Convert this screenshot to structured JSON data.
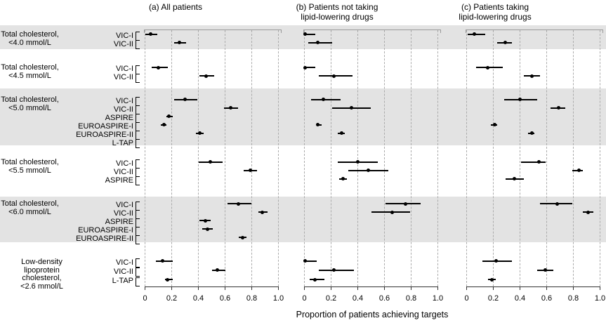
{
  "figure": {
    "background": "#ffffff",
    "colors": {
      "shaded_band": "#e3e3e3",
      "gridline": "#ababab",
      "top_frame": "#999999",
      "axis": "#333333",
      "data": "#000000",
      "text": "#000000"
    }
  },
  "chart_data": {
    "type": "scatter",
    "variant": "forest-plot-dots-with-ci",
    "x_axis": {
      "title": "Proportion of patients achieving targets",
      "range": [
        0,
        1
      ],
      "tick_values": [
        0,
        0.2,
        0.4,
        0.6,
        0.8,
        1.0
      ],
      "tick_labels": [
        "0",
        "0.2",
        "0.4",
        "0.6",
        "0.8",
        "1.0"
      ],
      "grid": "dashed-vertical"
    },
    "panels": [
      {
        "id": "a",
        "title_lines": [
          "(a) All patients"
        ]
      },
      {
        "id": "b",
        "title_lines": [
          "(b) Patients not taking",
          "lipid-lowering drugs"
        ]
      },
      {
        "id": "c",
        "title_lines": [
          "(c) Patients taking",
          "lipid-lowering drugs"
        ]
      }
    ],
    "groups": [
      {
        "target": "Total cholesterol, <4.0 mmol/L",
        "label_lines": [
          "Total cholesterol,",
          "<4.0 mmol/L"
        ],
        "shaded": true,
        "studies": [
          {
            "name": "VIC-I",
            "a": {
              "p": 0.04,
              "lo": 0.0,
              "hi": 0.09
            },
            "b": {
              "p": 0.005,
              "lo": 0.0,
              "hi": 0.08
            },
            "c": {
              "p": 0.06,
              "lo": 0.01,
              "hi": 0.14
            }
          },
          {
            "name": "VIC-II",
            "a": {
              "p": 0.26,
              "lo": 0.22,
              "hi": 0.31
            },
            "b": {
              "p": 0.1,
              "lo": 0.03,
              "hi": 0.21
            },
            "c": {
              "p": 0.29,
              "lo": 0.23,
              "hi": 0.34
            }
          }
        ]
      },
      {
        "target": "Total cholesterol, <4.5 mmol/L",
        "label_lines": [
          "Total cholesterol,",
          "<4.5 mmol/L"
        ],
        "shaded": false,
        "studies": [
          {
            "name": "VIC-I",
            "a": {
              "p": 0.1,
              "lo": 0.05,
              "hi": 0.17
            },
            "b": {
              "p": 0.005,
              "lo": 0.0,
              "hi": 0.08
            },
            "c": {
              "p": 0.16,
              "lo": 0.07,
              "hi": 0.27
            }
          },
          {
            "name": "VIC-II",
            "a": {
              "p": 0.46,
              "lo": 0.41,
              "hi": 0.52
            },
            "b": {
              "p": 0.22,
              "lo": 0.11,
              "hi": 0.36
            },
            "c": {
              "p": 0.49,
              "lo": 0.43,
              "hi": 0.55
            }
          }
        ]
      },
      {
        "target": "Total cholesterol, <5.0 mmol/L",
        "label_lines": [
          "Total cholesterol,",
          "<5.0 mmol/L"
        ],
        "shaded": true,
        "studies": [
          {
            "name": "VIC-I",
            "a": {
              "p": 0.3,
              "lo": 0.22,
              "hi": 0.39
            },
            "b": {
              "p": 0.14,
              "lo": 0.05,
              "hi": 0.27
            },
            "c": {
              "p": 0.4,
              "lo": 0.28,
              "hi": 0.53
            }
          },
          {
            "name": "VIC-II",
            "a": {
              "p": 0.64,
              "lo": 0.59,
              "hi": 0.7
            },
            "b": {
              "p": 0.35,
              "lo": 0.21,
              "hi": 0.5
            },
            "c": {
              "p": 0.69,
              "lo": 0.63,
              "hi": 0.74
            }
          },
          {
            "name": "ASPIRE",
            "a": {
              "p": 0.18,
              "lo": 0.16,
              "hi": 0.21
            },
            "b": null,
            "c": null
          },
          {
            "name": "EUROASPIRE-I",
            "a": {
              "p": 0.14,
              "lo": 0.12,
              "hi": 0.16
            },
            "b": {
              "p": 0.1,
              "lo": 0.09,
              "hi": 0.13
            },
            "c": {
              "p": 0.21,
              "lo": 0.18,
              "hi": 0.23
            }
          },
          {
            "name": "EUROASPIRE-II",
            "a": {
              "p": 0.41,
              "lo": 0.38,
              "hi": 0.44
            },
            "b": {
              "p": 0.28,
              "lo": 0.25,
              "hi": 0.3
            },
            "c": {
              "p": 0.49,
              "lo": 0.46,
              "hi": 0.51
            }
          },
          {
            "name": "L-TAP",
            "a": null,
            "b": null,
            "c": null
          }
        ]
      },
      {
        "target": "Total cholesterol, <5.5 mmol/L",
        "label_lines": [
          "Total cholesterol,",
          "<5.5 mmol/L"
        ],
        "shaded": false,
        "studies": [
          {
            "name": "VIC-I",
            "a": {
              "p": 0.49,
              "lo": 0.4,
              "hi": 0.58
            },
            "b": {
              "p": 0.4,
              "lo": 0.25,
              "hi": 0.55
            },
            "c": {
              "p": 0.54,
              "lo": 0.41,
              "hi": 0.59
            }
          },
          {
            "name": "VIC-II",
            "a": {
              "p": 0.79,
              "lo": 0.74,
              "hi": 0.84
            },
            "b": {
              "p": 0.48,
              "lo": 0.33,
              "hi": 0.63
            },
            "c": {
              "p": 0.84,
              "lo": 0.79,
              "hi": 0.87
            }
          },
          {
            "name": "ASPIRE",
            "a": null,
            "b": {
              "p": 0.29,
              "lo": 0.26,
              "hi": 0.32
            },
            "c": {
              "p": 0.36,
              "lo": 0.29,
              "hi": 0.43
            }
          }
        ]
      },
      {
        "target": "Total cholesterol, <6.0 mmol/L",
        "label_lines": [
          "Total cholesterol,",
          "<6.0 mmol/L"
        ],
        "shaded": true,
        "studies": [
          {
            "name": "VIC-I",
            "a": {
              "p": 0.7,
              "lo": 0.62,
              "hi": 0.8
            },
            "b": {
              "p": 0.76,
              "lo": 0.61,
              "hi": 0.87
            },
            "c": {
              "p": 0.68,
              "lo": 0.55,
              "hi": 0.79
            }
          },
          {
            "name": "VIC-II",
            "a": {
              "p": 0.88,
              "lo": 0.85,
              "hi": 0.92
            },
            "b": {
              "p": 0.66,
              "lo": 0.5,
              "hi": 0.79
            },
            "c": {
              "p": 0.91,
              "lo": 0.87,
              "hi": 0.95
            }
          },
          {
            "name": "ASPIRE",
            "a": {
              "p": 0.45,
              "lo": 0.41,
              "hi": 0.49
            },
            "b": null,
            "c": null
          },
          {
            "name": "EUROASPIRE-I",
            "a": {
              "p": 0.47,
              "lo": 0.43,
              "hi": 0.51
            },
            "b": null,
            "c": null
          },
          {
            "name": "EUROASPIRE-II",
            "a": {
              "p": 0.73,
              "lo": 0.7,
              "hi": 0.76
            },
            "b": null,
            "c": null
          }
        ]
      },
      {
        "target": "Low-density lipoprotein cholesterol, <2.6 mmol/L",
        "label_lines": [
          "Low-density",
          "lipoprotein",
          "cholesterol,",
          "<2.6 mmol/L"
        ],
        "shaded": false,
        "studies": [
          {
            "name": "VIC-I",
            "a": {
              "p": 0.13,
              "lo": 0.08,
              "hi": 0.21
            },
            "b": {
              "p": 0.005,
              "lo": 0.0,
              "hi": 0.09
            },
            "c": {
              "p": 0.22,
              "lo": 0.12,
              "hi": 0.34
            }
          },
          {
            "name": "VIC-II",
            "a": {
              "p": 0.54,
              "lo": 0.5,
              "hi": 0.6
            },
            "b": {
              "p": 0.22,
              "lo": 0.11,
              "hi": 0.37
            },
            "c": {
              "p": 0.59,
              "lo": 0.53,
              "hi": 0.65
            }
          },
          {
            "name": "L-TAP",
            "a": {
              "p": 0.17,
              "lo": 0.15,
              "hi": 0.21
            },
            "b": {
              "p": 0.08,
              "lo": 0.04,
              "hi": 0.15
            },
            "c": {
              "p": 0.19,
              "lo": 0.16,
              "hi": 0.22
            }
          }
        ]
      }
    ]
  }
}
